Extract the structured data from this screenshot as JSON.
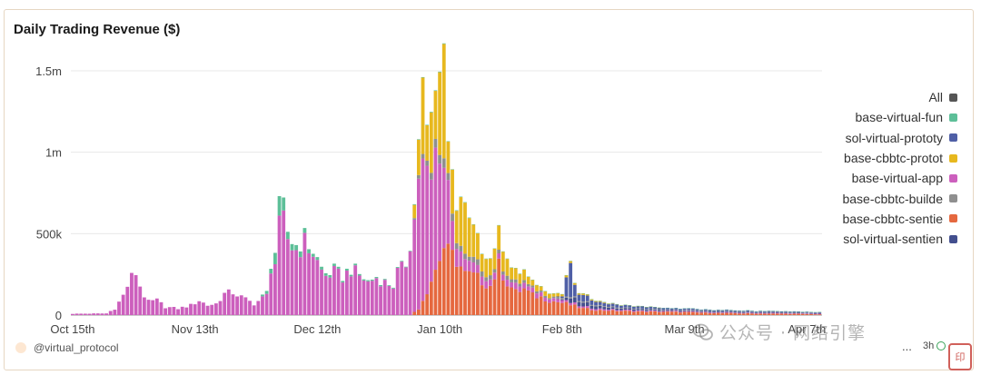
{
  "footer": {
    "handle": "@virtual_protocol",
    "menu_dots": "...",
    "badge_text": "3h",
    "watermark": "公众号 · 网络引擎"
  },
  "chart_data": {
    "type": "bar",
    "stacked": true,
    "title": "Daily Trading Revenue ($)",
    "xlabel": "",
    "ylabel": "",
    "ylim": [
      0,
      1600000
    ],
    "y_ticks": [
      0,
      500000,
      1000000,
      1500000
    ],
    "y_tick_labels": [
      "0",
      "500k",
      "1m",
      "1.5m"
    ],
    "x_tick_labels": [
      "Oct 15th",
      "Nov 13th",
      "Dec 12th",
      "Jan 10th",
      "Feb 8th",
      "Mar 9th",
      "Apr 7th"
    ],
    "x_tick_day_index": [
      0,
      29,
      58,
      87,
      116,
      145,
      174
    ],
    "grid": true,
    "legend_position": "right",
    "days": 178,
    "series": [
      {
        "name": "All",
        "color": "#555555"
      },
      {
        "name": "base-virtual-fun",
        "color": "#5dbf98"
      },
      {
        "name": "sol-virtual-prototy",
        "color": "#4f5fa6"
      },
      {
        "name": "base-cbbtc-protot",
        "color": "#e7b81e"
      },
      {
        "name": "base-virtual-app",
        "color": "#cc5fbd"
      },
      {
        "name": "base-cbbtc-builde",
        "color": "#8f8f8f"
      },
      {
        "name": "base-cbbtc-sentie",
        "color": "#e5683f"
      },
      {
        "name": "sol-virtual-sentien",
        "color": "#434f8e"
      }
    ],
    "keyframes": {
      "base-virtual-app": [
        [
          0,
          8000
        ],
        [
          8,
          10000
        ],
        [
          10,
          40000
        ],
        [
          12,
          120000
        ],
        [
          13,
          180000
        ],
        [
          14,
          230000
        ],
        [
          15,
          260000
        ],
        [
          16,
          180000
        ],
        [
          17,
          120000
        ],
        [
          18,
          80000
        ],
        [
          20,
          90000
        ],
        [
          22,
          50000
        ],
        [
          25,
          40000
        ],
        [
          28,
          60000
        ],
        [
          30,
          90000
        ],
        [
          32,
          60000
        ],
        [
          34,
          70000
        ],
        [
          36,
          130000
        ],
        [
          38,
          140000
        ],
        [
          40,
          110000
        ],
        [
          43,
          70000
        ],
        [
          46,
          120000
        ],
        [
          47,
          300000
        ],
        [
          48,
          320000
        ],
        [
          49,
          520000
        ],
        [
          50,
          560000
        ],
        [
          51,
          470000
        ],
        [
          52,
          420000
        ],
        [
          53,
          400000
        ],
        [
          55,
          440000
        ],
        [
          57,
          380000
        ],
        [
          59,
          270000
        ],
        [
          60,
          240000
        ],
        [
          62,
          260000
        ],
        [
          64,
          230000
        ],
        [
          66,
          280000
        ],
        [
          68,
          240000
        ],
        [
          70,
          200000
        ],
        [
          72,
          230000
        ],
        [
          74,
          200000
        ],
        [
          76,
          180000
        ],
        [
          77,
          260000
        ],
        [
          78,
          280000
        ],
        [
          79,
          320000
        ],
        [
          80,
          460000
        ],
        [
          81,
          560000
        ],
        [
          82,
          840000
        ],
        [
          83,
          820000
        ],
        [
          84,
          720000
        ],
        [
          85,
          600000
        ],
        [
          86,
          720000
        ],
        [
          87,
          690000
        ],
        [
          88,
          500000
        ],
        [
          89,
          380000
        ],
        [
          90,
          200000
        ],
        [
          91,
          120000
        ],
        [
          92,
          80000
        ],
        [
          94,
          60000
        ],
        [
          96,
          50000
        ],
        [
          100,
          40000
        ],
        [
          104,
          35000
        ],
        [
          108,
          30000
        ],
        [
          112,
          22000
        ],
        [
          118,
          12000
        ],
        [
          125,
          8000
        ],
        [
          140,
          5000
        ],
        [
          177,
          3000
        ]
      ],
      "base-cbbtc-sentie": [
        [
          0,
          0
        ],
        [
          80,
          0
        ],
        [
          82,
          40000
        ],
        [
          84,
          150000
        ],
        [
          86,
          280000
        ],
        [
          88,
          420000
        ],
        [
          89,
          380000
        ],
        [
          90,
          360000
        ],
        [
          91,
          340000
        ],
        [
          93,
          250000
        ],
        [
          95,
          240000
        ],
        [
          97,
          210000
        ],
        [
          99,
          180000
        ],
        [
          101,
          300000
        ],
        [
          103,
          200000
        ],
        [
          105,
          140000
        ],
        [
          107,
          160000
        ],
        [
          109,
          120000
        ],
        [
          111,
          110000
        ],
        [
          113,
          90000
        ],
        [
          115,
          80000
        ],
        [
          117,
          70000
        ],
        [
          119,
          55000
        ],
        [
          121,
          40000
        ],
        [
          125,
          30000
        ],
        [
          130,
          25000
        ],
        [
          135,
          22000
        ],
        [
          140,
          20000
        ],
        [
          145,
          18000
        ],
        [
          150,
          14000
        ],
        [
          160,
          10000
        ],
        [
          170,
          8000
        ],
        [
          177,
          5000
        ]
      ],
      "base-cbbtc-protot": [
        [
          0,
          0
        ],
        [
          80,
          0
        ],
        [
          81,
          90000
        ],
        [
          82,
          240000
        ],
        [
          83,
          450000
        ],
        [
          84,
          240000
        ],
        [
          85,
          320000
        ],
        [
          86,
          350000
        ],
        [
          87,
          510000
        ],
        [
          88,
          620000
        ],
        [
          89,
          220000
        ],
        [
          90,
          280000
        ],
        [
          91,
          200000
        ],
        [
          93,
          350000
        ],
        [
          95,
          200000
        ],
        [
          97,
          120000
        ],
        [
          99,
          90000
        ],
        [
          101,
          150000
        ],
        [
          103,
          90000
        ],
        [
          105,
          70000
        ],
        [
          107,
          60000
        ],
        [
          109,
          40000
        ],
        [
          111,
          30000
        ],
        [
          113,
          25000
        ],
        [
          116,
          15000
        ],
        [
          120,
          10000
        ],
        [
          125,
          5000
        ],
        [
          130,
          2000
        ],
        [
          140,
          0
        ],
        [
          177,
          0
        ]
      ],
      "base-virtual-fun": [
        [
          0,
          0
        ],
        [
          44,
          0
        ],
        [
          47,
          30000
        ],
        [
          48,
          60000
        ],
        [
          49,
          120000
        ],
        [
          50,
          90000
        ],
        [
          51,
          40000
        ],
        [
          53,
          30000
        ],
        [
          55,
          30000
        ],
        [
          57,
          20000
        ],
        [
          60,
          15000
        ],
        [
          65,
          10000
        ],
        [
          70,
          8000
        ],
        [
          75,
          5000
        ],
        [
          80,
          4000
        ],
        [
          90,
          3000
        ],
        [
          100,
          2000
        ],
        [
          120,
          1000
        ],
        [
          177,
          500
        ]
      ],
      "base-cbbtc-builde": [
        [
          0,
          0
        ],
        [
          80,
          0
        ],
        [
          82,
          20000
        ],
        [
          85,
          40000
        ],
        [
          88,
          60000
        ],
        [
          90,
          40000
        ],
        [
          93,
          30000
        ],
        [
          97,
          30000
        ],
        [
          100,
          25000
        ],
        [
          104,
          20000
        ],
        [
          108,
          15000
        ],
        [
          112,
          10000
        ],
        [
          117,
          8000
        ],
        [
          125,
          5000
        ],
        [
          140,
          3000
        ],
        [
          177,
          2000
        ]
      ],
      "sol-virtual-prototy": [
        [
          0,
          0
        ],
        [
          114,
          0
        ],
        [
          116,
          10000
        ],
        [
          118,
          220000
        ],
        [
          119,
          80000
        ],
        [
          120,
          40000
        ],
        [
          122,
          30000
        ],
        [
          125,
          22000
        ],
        [
          130,
          15000
        ],
        [
          140,
          10000
        ],
        [
          150,
          7000
        ],
        [
          177,
          4000
        ]
      ],
      "sol-virtual-sentien": [
        [
          0,
          0
        ],
        [
          114,
          0
        ],
        [
          116,
          5000
        ],
        [
          118,
          30000
        ],
        [
          120,
          25000
        ],
        [
          125,
          15000
        ],
        [
          130,
          10000
        ],
        [
          140,
          6000
        ],
        [
          177,
          3000
        ]
      ]
    }
  }
}
